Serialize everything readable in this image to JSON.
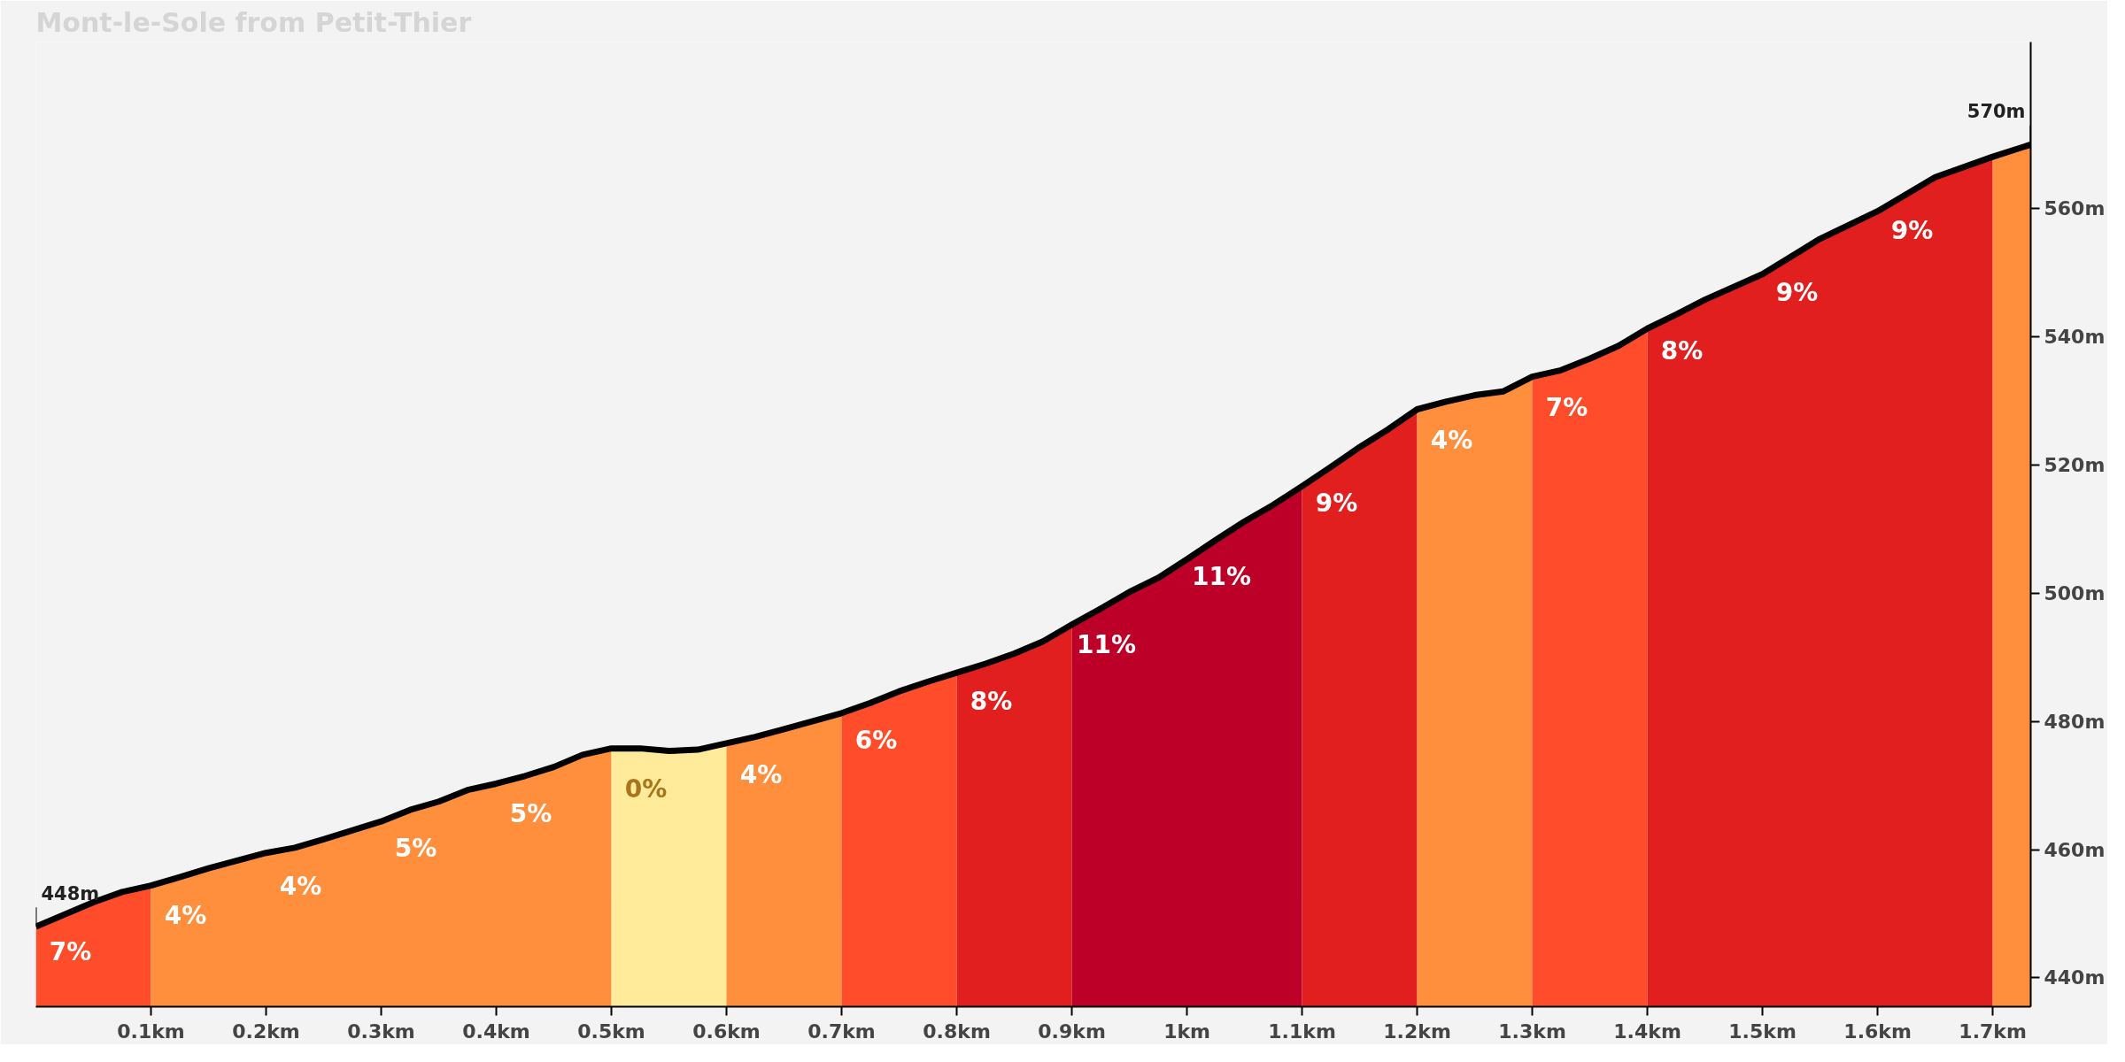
{
  "chart_data": {
    "type": "area",
    "title": "Mont-le-Sole from Petit-Thier",
    "xlim": [
      0,
      1.733
    ],
    "ylim": [
      435.5,
      586
    ],
    "xticks": [
      {
        "value": 0.1,
        "label": "0.1km"
      },
      {
        "value": 0.2,
        "label": "0.2km"
      },
      {
        "value": 0.3,
        "label": "0.3km"
      },
      {
        "value": 0.4,
        "label": "0.4km"
      },
      {
        "value": 0.5,
        "label": "0.5km"
      },
      {
        "value": 0.6,
        "label": "0.6km"
      },
      {
        "value": 0.7,
        "label": "0.7km"
      },
      {
        "value": 0.8,
        "label": "0.8km"
      },
      {
        "value": 0.9,
        "label": "0.9km"
      },
      {
        "value": 1,
        "label": "1km"
      },
      {
        "value": 1.1,
        "label": "1.1km"
      },
      {
        "value": 1.2,
        "label": "1.2km"
      },
      {
        "value": 1.3,
        "label": "1.3km"
      },
      {
        "value": 1.4,
        "label": "1.4km"
      },
      {
        "value": 1.5,
        "label": "1.5km"
      },
      {
        "value": 1.6,
        "label": "1.6km"
      },
      {
        "value": 1.7,
        "label": "1.7km"
      }
    ],
    "yticks": [
      {
        "value": 440,
        "label": "440m"
      },
      {
        "value": 460,
        "label": "460m"
      },
      {
        "value": 480,
        "label": "480m"
      },
      {
        "value": 500,
        "label": "500m"
      },
      {
        "value": 520,
        "label": "520m"
      },
      {
        "value": 540,
        "label": "540m"
      },
      {
        "value": 560,
        "label": "560m"
      }
    ],
    "grid": false,
    "series": [
      {
        "color": "#ff4d2b",
        "x": [
          0,
          0.05,
          0.075,
          0.1
        ],
        "values": [
          448,
          451.8,
          453.4,
          454.4
        ]
      },
      {
        "color": "#ff8f3d",
        "x": [
          0.1,
          0.125,
          0.15,
          0.175,
          0.2,
          0.225,
          0.25,
          0.3,
          0.325,
          0.35,
          0.375,
          0.4,
          0.425,
          0.45,
          0.475,
          0.5
        ],
        "values": [
          454.4,
          455.7,
          457.1,
          458.3,
          459.5,
          460.3,
          461.6,
          464.4,
          466.2,
          467.5,
          469.3,
          470.3,
          471.5,
          472.9,
          474.8,
          475.8
        ]
      },
      {
        "color": "#ffeb99",
        "x": [
          0.5,
          0.525,
          0.55,
          0.575,
          0.6
        ],
        "values": [
          475.8,
          475.8,
          475.4,
          475.6,
          476.6
        ]
      },
      {
        "color": "#ff8f3d",
        "x": [
          0.6,
          0.625,
          0.65,
          0.7
        ],
        "values": [
          476.6,
          477.6,
          478.8,
          481.3
        ]
      },
      {
        "color": "#ff4d2b",
        "x": [
          0.7,
          0.725,
          0.75,
          0.775,
          0.8
        ],
        "values": [
          481.3,
          482.9,
          484.7,
          486.2,
          487.6
        ]
      },
      {
        "color": "#e21f1f",
        "x": [
          0.8,
          0.825,
          0.85,
          0.875,
          0.9
        ],
        "values": [
          487.6,
          489.0,
          490.6,
          492.5,
          495.1
        ]
      },
      {
        "color": "#bd0027",
        "x": [
          0.9,
          0.925,
          0.95,
          0.975,
          1.0,
          1.025,
          1.05,
          1.075,
          1.1
        ],
        "values": [
          495.1,
          497.6,
          500.2,
          502.4,
          505.3,
          508.3,
          511.2,
          513.8,
          516.7
        ]
      },
      {
        "color": "#e21f1f",
        "x": [
          1.1,
          1.125,
          1.15,
          1.175,
          1.2
        ],
        "values": [
          516.7,
          519.7,
          522.8,
          525.6,
          528.7
        ]
      },
      {
        "color": "#ff8f3d",
        "x": [
          1.2,
          1.225,
          1.25,
          1.275,
          1.3
        ],
        "values": [
          528.7,
          529.9,
          530.9,
          531.5,
          533.8
        ]
      },
      {
        "color": "#ff4d2b",
        "x": [
          1.3,
          1.325,
          1.35,
          1.375,
          1.4
        ],
        "values": [
          533.8,
          534.8,
          536.6,
          538.6,
          541.3
        ]
      },
      {
        "color": "#e21f1f",
        "x": [
          1.4,
          1.425,
          1.45,
          1.5,
          1.55,
          1.6,
          1.65,
          1.7
        ],
        "values": [
          541.3,
          543.5,
          545.8,
          549.8,
          555.3,
          559.6,
          564.9,
          568.1
        ]
      },
      {
        "color": "#ff8f3d",
        "x": [
          1.7,
          1.733
        ],
        "values": [
          568.1,
          570
        ]
      },
      {
        "type": "line",
        "color": "#000000",
        "line_style": "solid",
        "marker": "none",
        "x": [
          0,
          0.05,
          0.075,
          0.1,
          0.125,
          0.15,
          0.175,
          0.2,
          0.225,
          0.25,
          0.3,
          0.325,
          0.35,
          0.375,
          0.4,
          0.425,
          0.45,
          0.475,
          0.5,
          0.525,
          0.55,
          0.575,
          0.6,
          0.625,
          0.65,
          0.7,
          0.725,
          0.75,
          0.775,
          0.8,
          0.825,
          0.85,
          0.875,
          0.9,
          0.925,
          0.95,
          0.975,
          1.0,
          1.025,
          1.05,
          1.075,
          1.1,
          1.125,
          1.15,
          1.175,
          1.2,
          1.225,
          1.25,
          1.275,
          1.3,
          1.325,
          1.35,
          1.375,
          1.4,
          1.425,
          1.45,
          1.5,
          1.55,
          1.6,
          1.65,
          1.7,
          1.733
        ],
        "values": [
          448,
          451.8,
          453.4,
          454.4,
          455.7,
          457.1,
          458.3,
          459.5,
          460.3,
          461.6,
          464.4,
          466.2,
          467.5,
          469.3,
          470.3,
          471.5,
          472.9,
          474.8,
          475.8,
          475.8,
          475.4,
          475.6,
          476.6,
          477.6,
          478.8,
          481.3,
          482.9,
          484.7,
          486.2,
          487.6,
          489.0,
          490.6,
          492.5,
          495.1,
          497.6,
          500.2,
          502.4,
          505.3,
          508.3,
          511.2,
          513.8,
          516.7,
          519.7,
          522.8,
          525.6,
          528.7,
          529.9,
          530.9,
          531.5,
          533.8,
          534.8,
          536.6,
          538.6,
          541.3,
          543.5,
          545.8,
          549.8,
          555.3,
          559.6,
          564.9,
          568.1,
          570
        ]
      }
    ],
    "annotations": [
      {
        "text": "448m",
        "x": 0,
        "y": 448
      },
      {
        "text": "570m",
        "x": 1.733,
        "y": 570
      },
      "7%",
      "4%",
      "4%",
      "5%",
      "5%",
      "0%",
      "4%",
      "6%",
      "8%",
      "11%",
      "11%",
      "9%",
      "4%",
      "7%",
      "8%",
      "9%",
      "9%"
    ]
  }
}
